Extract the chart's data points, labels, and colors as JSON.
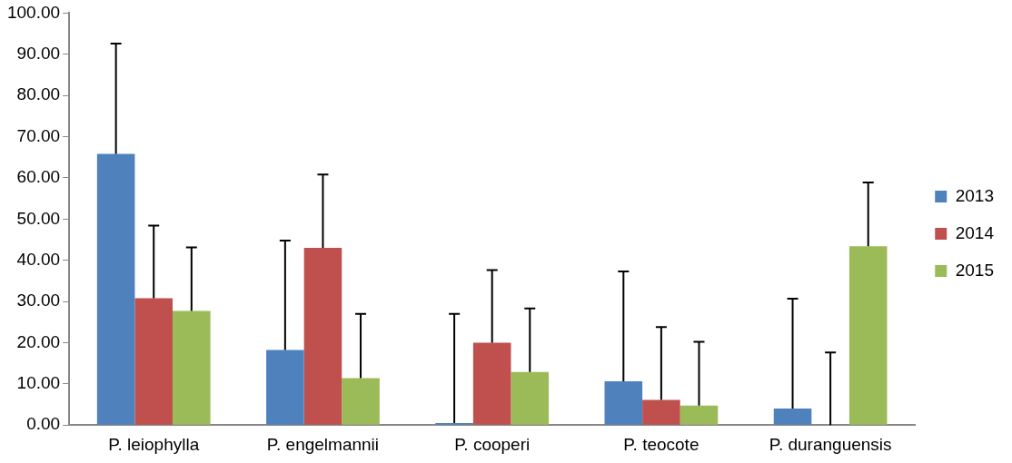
{
  "chart_data": {
    "type": "bar",
    "categories": [
      "P. leiophylla",
      "P. engelmannii",
      "P. cooperi",
      "P. teocote",
      "P. duranguensis"
    ],
    "series": [
      {
        "name": "2013",
        "color": "#4f81bd",
        "values": [
          65.8,
          18.2,
          0.5,
          10.6,
          4.0
        ],
        "errors": [
          [
            65.8,
            92.6
          ],
          [
            18.2,
            44.8
          ],
          [
            0.5,
            27.0
          ],
          [
            10.6,
            37.3
          ],
          [
            4.0,
            30.7
          ]
        ]
      },
      {
        "name": "2014",
        "color": "#c0504d",
        "values": [
          30.8,
          43.0,
          20.0,
          6.1,
          0
        ],
        "errors": [
          [
            30.8,
            48.4
          ],
          [
            43.0,
            60.8
          ],
          [
            20.0,
            37.6
          ],
          [
            6.1,
            23.8
          ],
          [
            0,
            17.6
          ]
        ]
      },
      {
        "name": "2015",
        "color": "#9bbb59",
        "values": [
          27.7,
          11.4,
          12.9,
          4.7,
          43.4
        ],
        "errors": [
          [
            27.7,
            43.1
          ],
          [
            11.4,
            27.0
          ],
          [
            12.9,
            28.3
          ],
          [
            4.7,
            20.2
          ],
          [
            43.4,
            58.9
          ]
        ]
      }
    ],
    "ylim": [
      0,
      100
    ],
    "yticks": [
      {
        "value": 0,
        "label": "0.00"
      },
      {
        "value": 10,
        "label": "10.00"
      },
      {
        "value": 20,
        "label": "20.00"
      },
      {
        "value": 30,
        "label": "30.00"
      },
      {
        "value": 40,
        "label": "40.00"
      },
      {
        "value": 50,
        "label": "50.00"
      },
      {
        "value": 60,
        "label": "60.00"
      },
      {
        "value": 70,
        "label": "70.00"
      },
      {
        "value": 80,
        "label": "80.00"
      },
      {
        "value": 90,
        "label": "90.00"
      },
      {
        "value": 100,
        "label": "100.00"
      }
    ],
    "grid": false,
    "legend": "right"
  }
}
